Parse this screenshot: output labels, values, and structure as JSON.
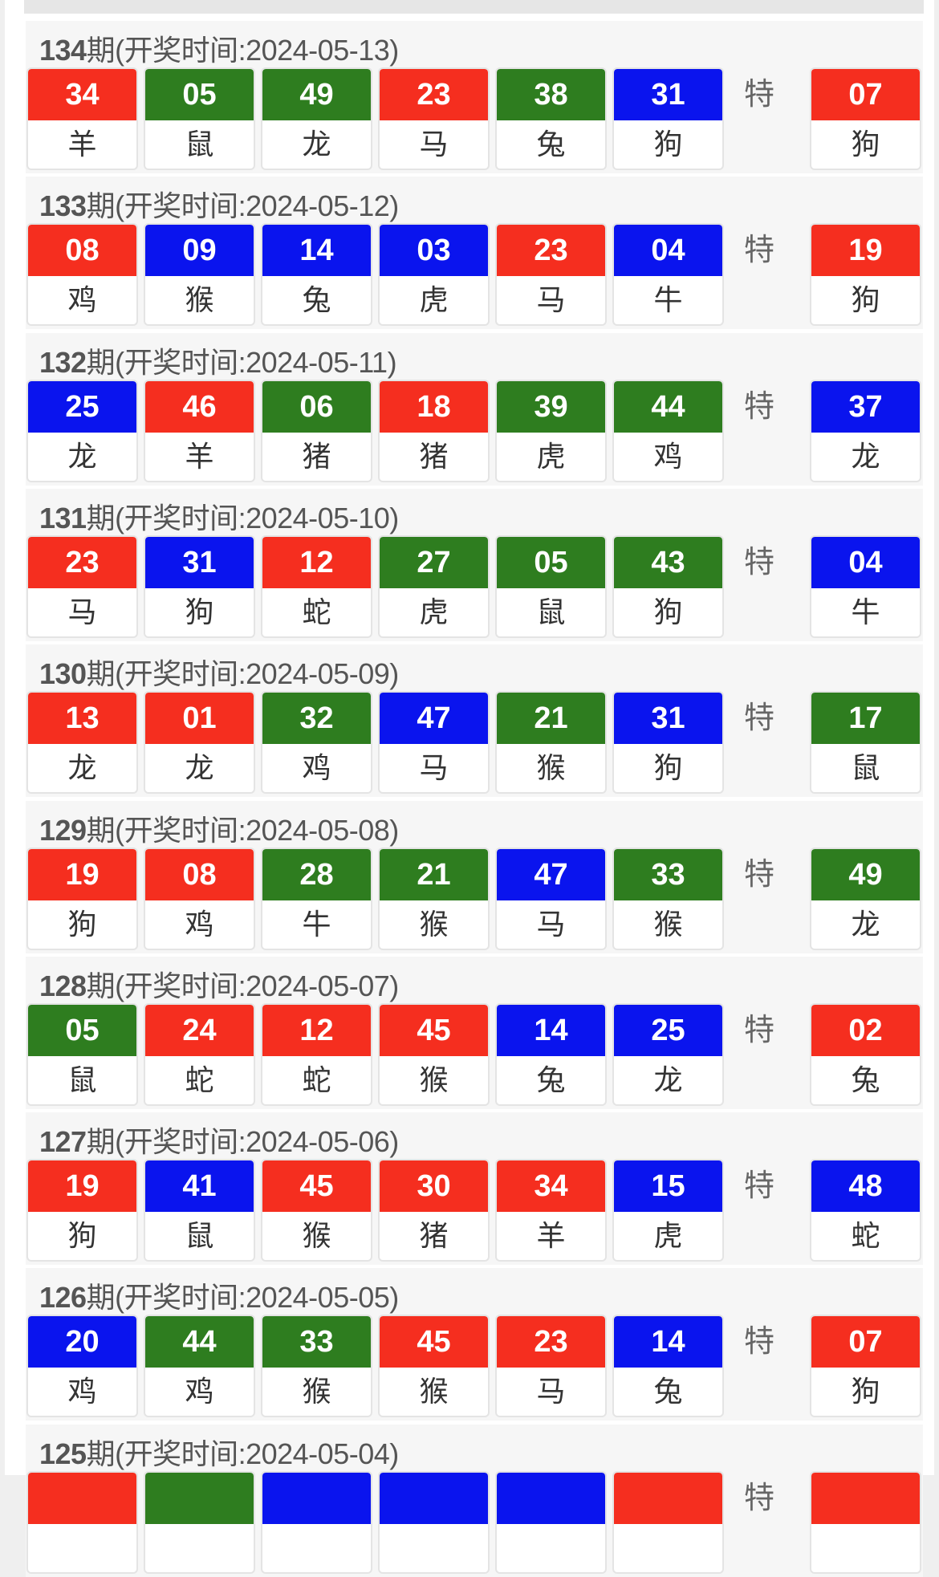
{
  "colors": {
    "r": "#f52e1f",
    "g": "#2e7d1f",
    "b": "#0a14ee"
  },
  "special_label": "特",
  "period_suffix": "期",
  "draw_time_label": "(开奖时间:",
  "draws": [
    {
      "period": "134",
      "date": "2024-05-13",
      "balls": [
        [
          "34",
          "r",
          "羊"
        ],
        [
          "05",
          "g",
          "鼠"
        ],
        [
          "49",
          "g",
          "龙"
        ],
        [
          "23",
          "r",
          "马"
        ],
        [
          "38",
          "g",
          "兔"
        ],
        [
          "31",
          "b",
          "狗"
        ]
      ],
      "special": [
        "07",
        "r",
        "狗"
      ]
    },
    {
      "period": "133",
      "date": "2024-05-12",
      "balls": [
        [
          "08",
          "r",
          "鸡"
        ],
        [
          "09",
          "b",
          "猴"
        ],
        [
          "14",
          "b",
          "兔"
        ],
        [
          "03",
          "b",
          "虎"
        ],
        [
          "23",
          "r",
          "马"
        ],
        [
          "04",
          "b",
          "牛"
        ]
      ],
      "special": [
        "19",
        "r",
        "狗"
      ]
    },
    {
      "period": "132",
      "date": "2024-05-11",
      "balls": [
        [
          "25",
          "b",
          "龙"
        ],
        [
          "46",
          "r",
          "羊"
        ],
        [
          "06",
          "g",
          "猪"
        ],
        [
          "18",
          "r",
          "猪"
        ],
        [
          "39",
          "g",
          "虎"
        ],
        [
          "44",
          "g",
          "鸡"
        ]
      ],
      "special": [
        "37",
        "b",
        "龙"
      ]
    },
    {
      "period": "131",
      "date": "2024-05-10",
      "balls": [
        [
          "23",
          "r",
          "马"
        ],
        [
          "31",
          "b",
          "狗"
        ],
        [
          "12",
          "r",
          "蛇"
        ],
        [
          "27",
          "g",
          "虎"
        ],
        [
          "05",
          "g",
          "鼠"
        ],
        [
          "43",
          "g",
          "狗"
        ]
      ],
      "special": [
        "04",
        "b",
        "牛"
      ]
    },
    {
      "period": "130",
      "date": "2024-05-09",
      "balls": [
        [
          "13",
          "r",
          "龙"
        ],
        [
          "01",
          "r",
          "龙"
        ],
        [
          "32",
          "g",
          "鸡"
        ],
        [
          "47",
          "b",
          "马"
        ],
        [
          "21",
          "g",
          "猴"
        ],
        [
          "31",
          "b",
          "狗"
        ]
      ],
      "special": [
        "17",
        "g",
        "鼠"
      ]
    },
    {
      "period": "129",
      "date": "2024-05-08",
      "balls": [
        [
          "19",
          "r",
          "狗"
        ],
        [
          "08",
          "r",
          "鸡"
        ],
        [
          "28",
          "g",
          "牛"
        ],
        [
          "21",
          "g",
          "猴"
        ],
        [
          "47",
          "b",
          "马"
        ],
        [
          "33",
          "g",
          "猴"
        ]
      ],
      "special": [
        "49",
        "g",
        "龙"
      ]
    },
    {
      "period": "128",
      "date": "2024-05-07",
      "balls": [
        [
          "05",
          "g",
          "鼠"
        ],
        [
          "24",
          "r",
          "蛇"
        ],
        [
          "12",
          "r",
          "蛇"
        ],
        [
          "45",
          "r",
          "猴"
        ],
        [
          "14",
          "b",
          "兔"
        ],
        [
          "25",
          "b",
          "龙"
        ]
      ],
      "special": [
        "02",
        "r",
        "兔"
      ]
    },
    {
      "period": "127",
      "date": "2024-05-06",
      "balls": [
        [
          "19",
          "r",
          "狗"
        ],
        [
          "41",
          "b",
          "鼠"
        ],
        [
          "45",
          "r",
          "猴"
        ],
        [
          "30",
          "r",
          "猪"
        ],
        [
          "34",
          "r",
          "羊"
        ],
        [
          "15",
          "b",
          "虎"
        ]
      ],
      "special": [
        "48",
        "b",
        "蛇"
      ]
    },
    {
      "period": "126",
      "date": "2024-05-05",
      "balls": [
        [
          "20",
          "b",
          "鸡"
        ],
        [
          "44",
          "g",
          "鸡"
        ],
        [
          "33",
          "g",
          "猴"
        ],
        [
          "45",
          "r",
          "猴"
        ],
        [
          "23",
          "r",
          "马"
        ],
        [
          "14",
          "b",
          "兔"
        ]
      ],
      "special": [
        "07",
        "r",
        "狗"
      ]
    },
    {
      "period": "125",
      "date": "2024-05-04",
      "balls": [
        [
          "",
          "r",
          ""
        ],
        [
          "",
          "g",
          ""
        ],
        [
          "",
          "b",
          ""
        ],
        [
          "",
          "b",
          ""
        ],
        [
          "",
          "b",
          ""
        ],
        [
          "",
          "r",
          ""
        ]
      ],
      "special": [
        "",
        "r",
        ""
      ]
    }
  ]
}
